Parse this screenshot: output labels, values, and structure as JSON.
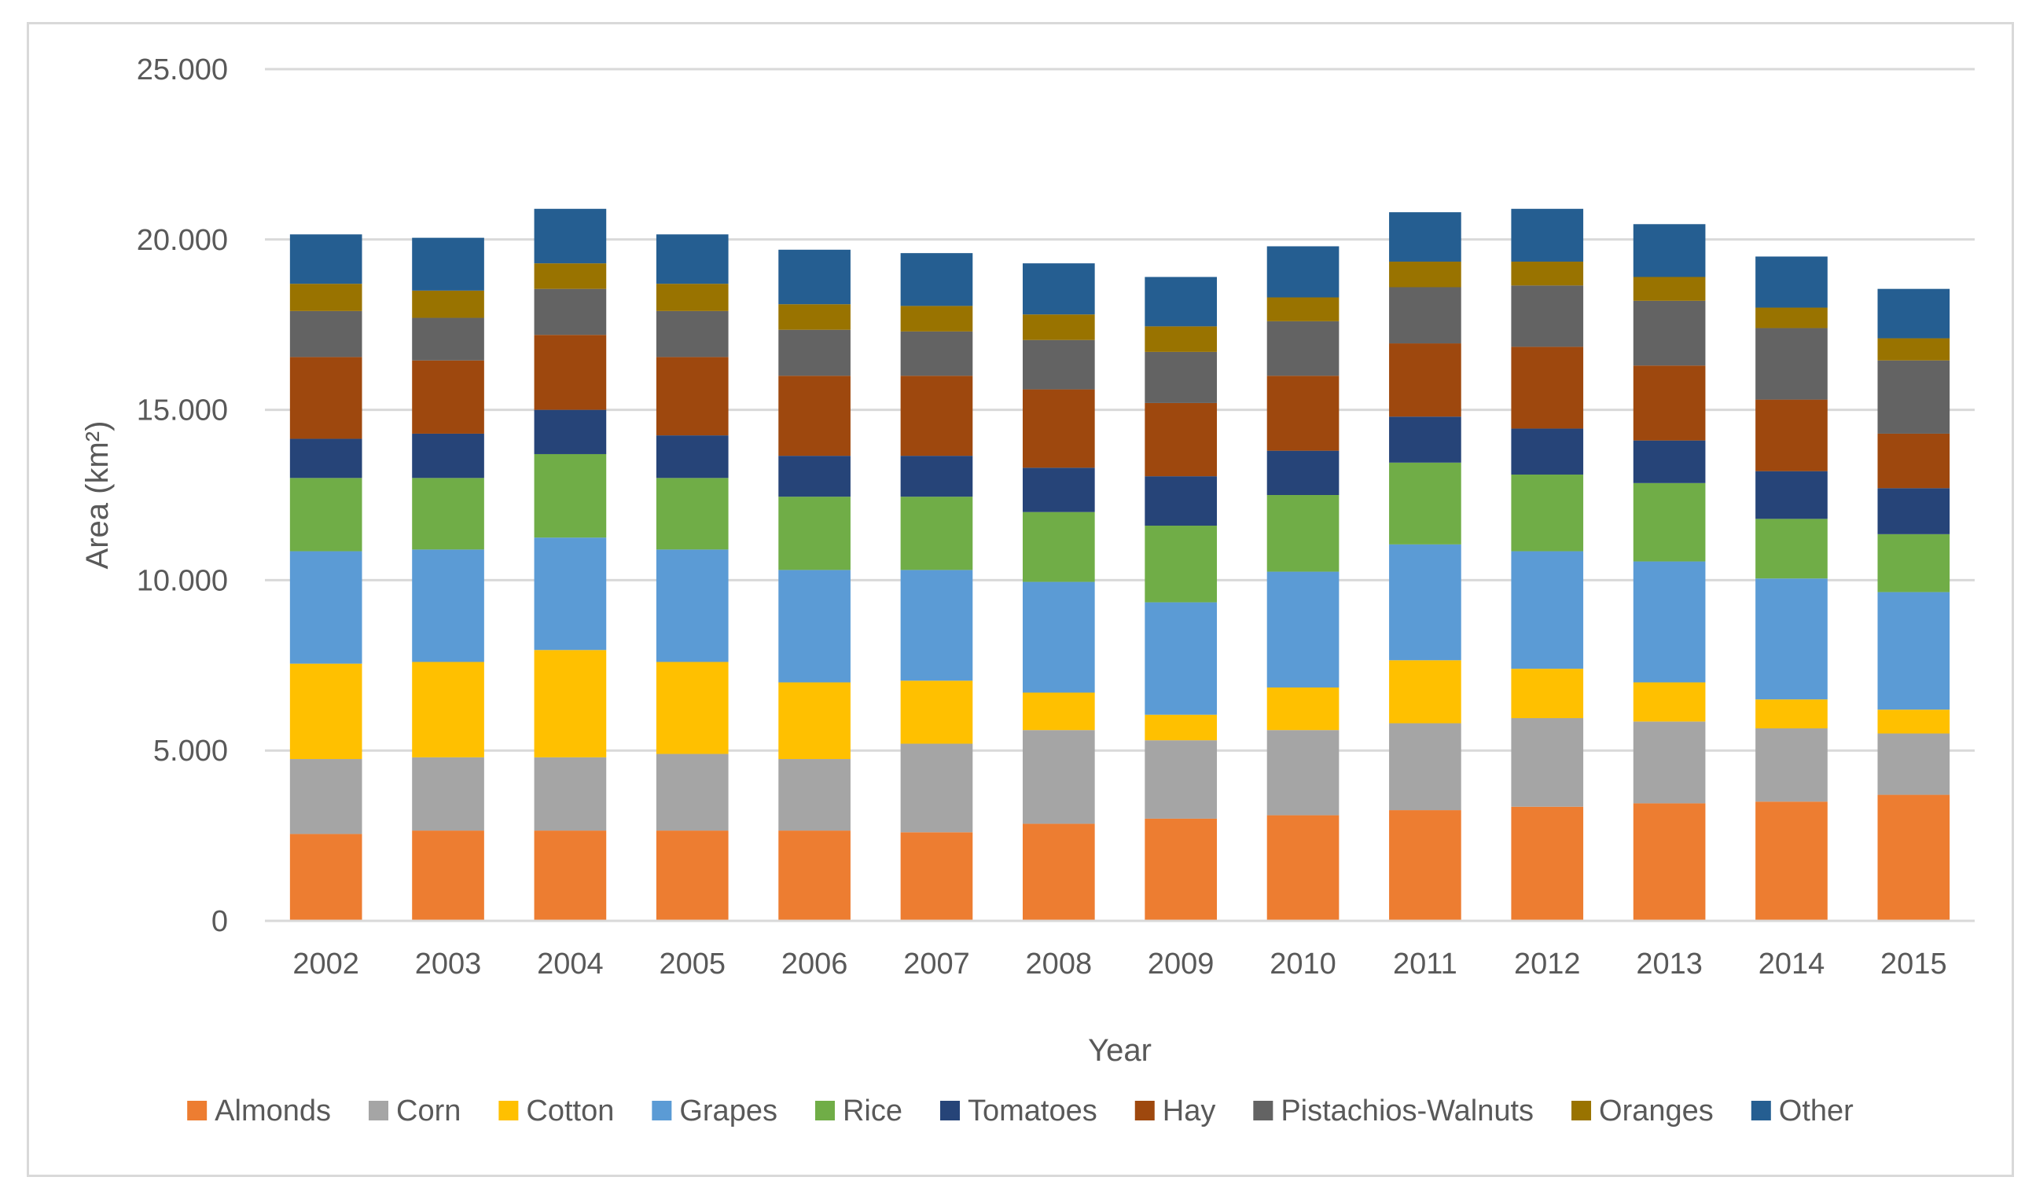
{
  "chart_data": {
    "type": "bar",
    "stacked": true,
    "xlabel": "Year",
    "ylabel": "Area (km²)",
    "ylim": [
      0,
      25000
    ],
    "yticks": [
      0,
      5000,
      10000,
      15000,
      20000,
      25000
    ],
    "ytick_labels": [
      "0",
      "5.000",
      "10.000",
      "15.000",
      "20.000",
      "25.000"
    ],
    "grid": true,
    "legend_position": "bottom",
    "categories": [
      "2002",
      "2003",
      "2004",
      "2005",
      "2006",
      "2007",
      "2008",
      "2009",
      "2010",
      "2011",
      "2012",
      "2013",
      "2014",
      "2015"
    ],
    "series": [
      {
        "name": "Almonds",
        "color": "#ED7D31",
        "values": [
          2550,
          2650,
          2650,
          2650,
          2650,
          2600,
          2850,
          3000,
          3100,
          3250,
          3350,
          3450,
          3500,
          3700
        ]
      },
      {
        "name": "Corn",
        "color": "#A5A5A5",
        "values": [
          2200,
          2150,
          2150,
          2250,
          2100,
          2600,
          2750,
          2300,
          2500,
          2550,
          2600,
          2400,
          2150,
          1800
        ]
      },
      {
        "name": "Cotton",
        "color": "#FFC000",
        "values": [
          2800,
          2800,
          3150,
          2700,
          2250,
          1850,
          1100,
          750,
          1250,
          1850,
          1450,
          1150,
          850,
          700
        ]
      },
      {
        "name": "Grapes",
        "color": "#5B9BD5",
        "values": [
          3300,
          3300,
          3300,
          3300,
          3300,
          3250,
          3250,
          3300,
          3400,
          3400,
          3450,
          3550,
          3550,
          3450
        ]
      },
      {
        "name": "Rice",
        "color": "#70AD47",
        "values": [
          2150,
          2100,
          2450,
          2100,
          2150,
          2150,
          2050,
          2250,
          2250,
          2400,
          2250,
          2300,
          1750,
          1700
        ]
      },
      {
        "name": "Tomatoes",
        "color": "#264478",
        "values": [
          1150,
          1300,
          1300,
          1250,
          1200,
          1200,
          1300,
          1450,
          1300,
          1350,
          1350,
          1250,
          1400,
          1350
        ]
      },
      {
        "name": "Hay",
        "color": "#9E480E",
        "values": [
          2400,
          2150,
          2200,
          2300,
          2350,
          2350,
          2300,
          2150,
          2200,
          2150,
          2400,
          2200,
          2100,
          1600
        ]
      },
      {
        "name": "Pistachios-Walnuts",
        "color": "#636363",
        "values": [
          1350,
          1250,
          1350,
          1350,
          1350,
          1300,
          1450,
          1500,
          1600,
          1650,
          1800,
          1900,
          2100,
          2150
        ]
      },
      {
        "name": "Oranges",
        "color": "#997300",
        "values": [
          800,
          800,
          750,
          800,
          750,
          750,
          750,
          750,
          700,
          750,
          700,
          700,
          600,
          650
        ]
      },
      {
        "name": "Other",
        "color": "#255E91",
        "values": [
          1450,
          1550,
          1600,
          1450,
          1600,
          1550,
          1500,
          1450,
          1500,
          1450,
          1550,
          1550,
          1500,
          1450
        ]
      }
    ]
  }
}
